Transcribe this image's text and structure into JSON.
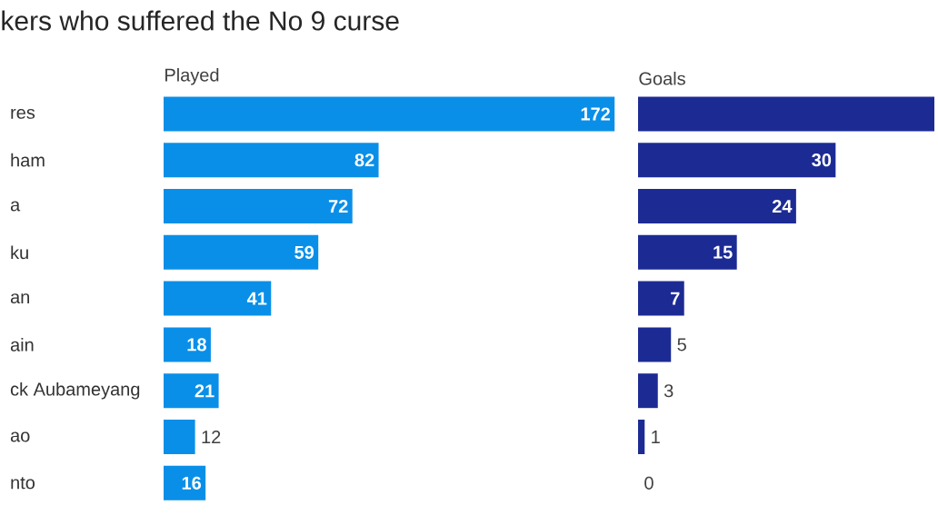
{
  "chart_data": [
    {
      "type": "bar",
      "orientation": "horizontal",
      "title": "kers who suffered the No 9 curse",
      "xlabel": "Played",
      "categories": [
        "res",
        "ham",
        "a",
        "ku",
        "an",
        "ain",
        "ck Aubameyang",
        "ao",
        "nto"
      ],
      "values": [
        172,
        82,
        72,
        59,
        41,
        18,
        21,
        12,
        16
      ],
      "color": "#0a8fe8",
      "data_labels": true
    },
    {
      "type": "bar",
      "orientation": "horizontal",
      "xlabel": "Goals",
      "categories": [
        null,
        null,
        null,
        null,
        null,
        null,
        null,
        null,
        null
      ],
      "values": [
        45,
        30,
        24,
        15,
        7,
        5,
        3,
        1,
        0
      ],
      "color": "#1c2b94",
      "tick_labels": false,
      "value_labels": [
        null,
        "30",
        "24",
        "15",
        "7",
        "5",
        "3",
        "1",
        "0"
      ]
    }
  ]
}
